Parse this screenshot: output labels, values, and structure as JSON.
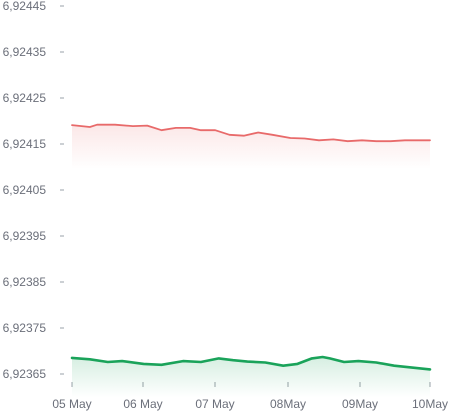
{
  "chart_data": {
    "type": "line",
    "title": "",
    "xlabel": "",
    "ylabel": "",
    "x_ticks": [
      "05 May",
      "06 May",
      "07 May",
      "08May",
      "09May",
      "10May"
    ],
    "y_ticks": [
      "6,92445",
      "6,92435",
      "6,92425",
      "6,92415",
      "6,92405",
      "6,92395",
      "6,92385",
      "6,92375",
      "6,92365"
    ],
    "ylim": [
      6.92362,
      6.92445
    ],
    "xlim": [
      0,
      5
    ],
    "grid": false,
    "legend": "none",
    "series": [
      {
        "color": "#e86a6a",
        "x": [
          0,
          0.25,
          0.35,
          0.6,
          0.85,
          1.05,
          1.25,
          1.45,
          1.65,
          1.8,
          2.0,
          2.2,
          2.4,
          2.6,
          2.8,
          3.05,
          3.25,
          3.45,
          3.65,
          3.85,
          4.05,
          4.25,
          4.45,
          4.65,
          4.8,
          5.0
        ],
        "y": [
          6.924191,
          6.924187,
          6.924192,
          6.924192,
          6.924189,
          6.92419,
          6.92418,
          6.924185,
          6.924185,
          6.92418,
          6.92418,
          6.92417,
          6.924168,
          6.924175,
          6.92417,
          6.924163,
          6.924162,
          6.924158,
          6.92416,
          6.924156,
          6.924158,
          6.924156,
          6.924156,
          6.924158,
          6.924158,
          6.924158
        ]
      },
      {
        "color": "#1aa35a",
        "x": [
          0,
          0.25,
          0.5,
          0.7,
          1.0,
          1.25,
          1.55,
          1.8,
          2.05,
          2.25,
          2.45,
          2.7,
          2.95,
          3.15,
          3.35,
          3.5,
          3.6,
          3.8,
          4.0,
          4.25,
          4.5,
          4.75,
          5.0
        ],
        "y": [
          6.923685,
          6.923682,
          6.923676,
          6.923678,
          6.923672,
          6.92367,
          6.923678,
          6.923676,
          6.923684,
          6.92368,
          6.923677,
          6.923675,
          6.923668,
          6.923672,
          6.923684,
          6.923687,
          6.923684,
          6.923676,
          6.923678,
          6.923675,
          6.923668,
          6.923664,
          6.92366
        ]
      }
    ]
  }
}
